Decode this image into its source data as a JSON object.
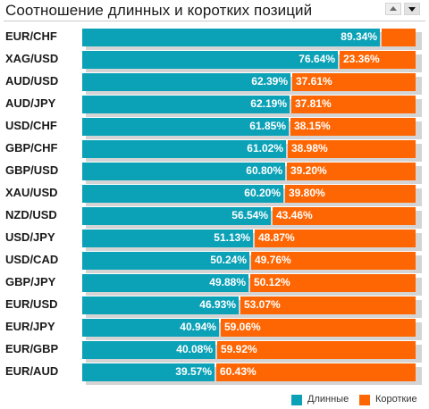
{
  "header": {
    "title": "Соотношение длинных и коротких позиций",
    "sort_up_icon": "triangle-up-icon",
    "sort_down_icon": "triangle-down-icon"
  },
  "colors": {
    "long": "#0ba1b7",
    "short": "#fe6603"
  },
  "chart_data": {
    "type": "bar",
    "orientation": "horizontal",
    "stacked": true,
    "unit": "%",
    "xlim": [
      0,
      100
    ],
    "legend_position": "bottom-right",
    "categories": [
      "EUR/CHF",
      "XAG/USD",
      "AUD/USD",
      "AUD/JPY",
      "USD/CHF",
      "GBP/CHF",
      "GBP/USD",
      "XAU/USD",
      "NZD/USD",
      "USD/JPY",
      "USD/CAD",
      "GBP/JPY",
      "EUR/USD",
      "EUR/JPY",
      "EUR/GBP",
      "EUR/AUD"
    ],
    "series": [
      {
        "name": "Длинные",
        "values": [
          89.34,
          76.64,
          62.39,
          62.19,
          61.85,
          61.02,
          60.8,
          60.2,
          56.54,
          51.13,
          50.24,
          49.88,
          46.93,
          40.94,
          40.08,
          39.57
        ],
        "labels": [
          "89.34%",
          "76.64%",
          "62.39%",
          "62.19%",
          "61.85%",
          "61.02%",
          "60.80%",
          "60.20%",
          "56.54%",
          "51.13%",
          "50.24%",
          "49.88%",
          "46.93%",
          "40.94%",
          "40.08%",
          "39.57%"
        ]
      },
      {
        "name": "Короткие",
        "values": [
          10.66,
          23.36,
          37.61,
          37.81,
          38.15,
          38.98,
          39.2,
          39.8,
          43.46,
          48.87,
          49.76,
          50.12,
          53.07,
          59.06,
          59.92,
          60.43
        ],
        "labels": [
          "",
          "23.36%",
          "37.61%",
          "37.81%",
          "38.15%",
          "38.98%",
          "39.20%",
          "39.80%",
          "43.46%",
          "48.87%",
          "49.76%",
          "50.12%",
          "53.07%",
          "59.06%",
          "59.92%",
          "60.43%"
        ]
      }
    ]
  }
}
